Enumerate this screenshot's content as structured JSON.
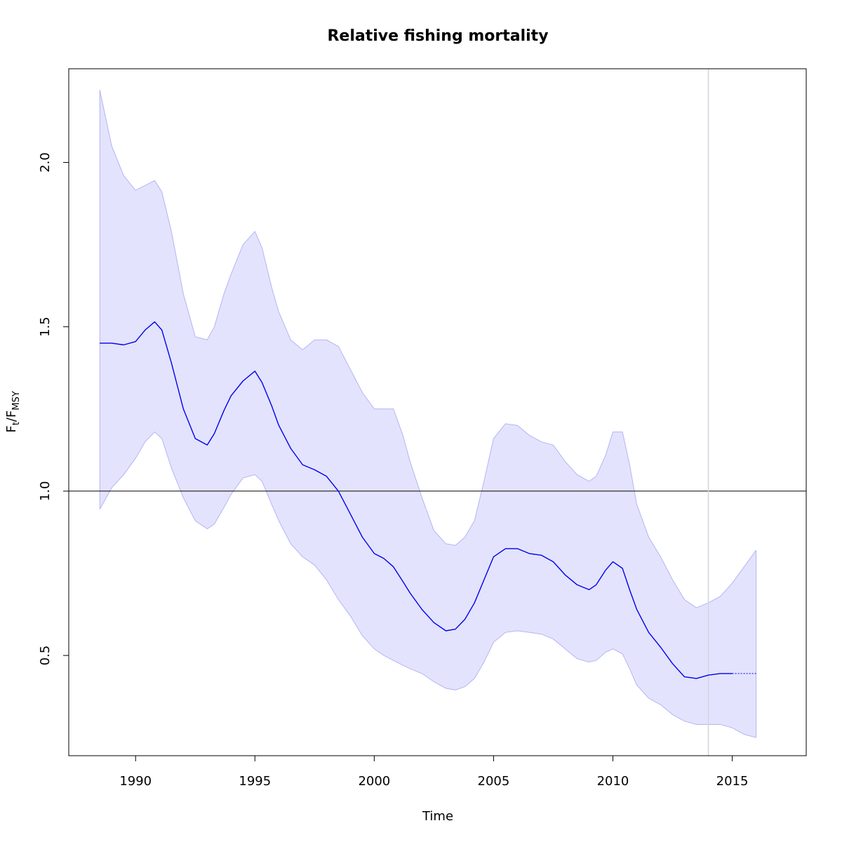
{
  "chart_data": {
    "type": "line",
    "title": "Relative fishing mortality",
    "xlabel": "Time",
    "ylabel": {
      "main": "F",
      "sub1": "t",
      "sep": "/",
      "main2": "F",
      "sub2": "MSY"
    },
    "xlim": [
      1987.2,
      2018.1
    ],
    "ylim": [
      0.195,
      2.285
    ],
    "x_ticks": [
      1990,
      1995,
      2000,
      2005,
      2010,
      2015
    ],
    "y_ticks": [
      0.5,
      1.0,
      1.5,
      2.0
    ],
    "y_tick_labels": [
      "0.5",
      "1.0",
      "1.5",
      "2.0"
    ],
    "reference_hline": 1.0,
    "reference_vline": 2014,
    "grid": false,
    "colors": {
      "line": "#0000ee",
      "band_fill": "#e3e3fd",
      "band_edge": "#b4b4f6",
      "hline": "#000000",
      "vline": "#d4d4e0"
    },
    "series": [
      {
        "style": "estimate",
        "x": [
          1988.5,
          1989.0,
          1989.5,
          1990.0,
          1990.4,
          1990.8,
          1991.1,
          1991.5,
          1992.0,
          1992.5,
          1993.0,
          1993.3,
          1993.7,
          1994.0,
          1994.5,
          1995.0,
          1995.3,
          1995.7,
          1996.0,
          1996.5,
          1997.0,
          1997.5,
          1998.0,
          1998.5,
          1999.0,
          1999.5,
          2000.0,
          2000.4,
          2000.8,
          2001.2,
          2001.5,
          2002.0,
          2002.5,
          2003.0,
          2003.4,
          2003.8,
          2004.2,
          2004.6,
          2005.0,
          2005.5,
          2006.0,
          2006.5,
          2007.0,
          2007.5,
          2008.0,
          2008.5,
          2009.0,
          2009.3,
          2009.7,
          2010.0,
          2010.4,
          2010.7,
          2011.0,
          2011.5,
          2012.0,
          2012.5,
          2013.0,
          2013.5,
          2014.0,
          2014.5,
          2015.0
        ],
        "y": [
          1.45,
          1.45,
          1.445,
          1.455,
          1.49,
          1.515,
          1.49,
          1.39,
          1.25,
          1.16,
          1.14,
          1.175,
          1.245,
          1.29,
          1.335,
          1.365,
          1.33,
          1.26,
          1.2,
          1.13,
          1.08,
          1.065,
          1.045,
          1.0,
          0.93,
          0.86,
          0.81,
          0.795,
          0.77,
          0.725,
          0.69,
          0.64,
          0.6,
          0.575,
          0.58,
          0.61,
          0.66,
          0.73,
          0.8,
          0.825,
          0.825,
          0.81,
          0.805,
          0.785,
          0.745,
          0.715,
          0.7,
          0.715,
          0.76,
          0.785,
          0.765,
          0.7,
          0.64,
          0.57,
          0.525,
          0.475,
          0.435,
          0.43,
          0.44,
          0.445,
          0.445
        ]
      },
      {
        "style": "projection",
        "x": [
          2015.0,
          2016.0
        ],
        "y": [
          0.445,
          0.445
        ]
      }
    ],
    "confidence_band": {
      "x": [
        1988.5,
        1989.0,
        1989.5,
        1990.0,
        1990.4,
        1990.8,
        1991.1,
        1991.5,
        1992.0,
        1992.5,
        1993.0,
        1993.3,
        1993.7,
        1994.0,
        1994.5,
        1995.0,
        1995.3,
        1995.7,
        1996.0,
        1996.5,
        1997.0,
        1997.5,
        1998.0,
        1998.5,
        1999.0,
        1999.5,
        2000.0,
        2000.4,
        2000.8,
        2001.2,
        2001.5,
        2002.0,
        2002.5,
        2003.0,
        2003.4,
        2003.8,
        2004.2,
        2004.6,
        2005.0,
        2005.5,
        2006.0,
        2006.5,
        2007.0,
        2007.5,
        2008.0,
        2008.5,
        2009.0,
        2009.3,
        2009.7,
        2010.0,
        2010.4,
        2010.7,
        2011.0,
        2011.5,
        2012.0,
        2012.5,
        2013.0,
        2013.5,
        2014.0,
        2014.5,
        2015.0,
        2015.5,
        2016.0
      ],
      "upper": [
        2.22,
        2.05,
        1.96,
        1.915,
        1.93,
        1.945,
        1.91,
        1.79,
        1.6,
        1.47,
        1.46,
        1.5,
        1.6,
        1.66,
        1.75,
        1.79,
        1.74,
        1.62,
        1.545,
        1.46,
        1.43,
        1.46,
        1.46,
        1.44,
        1.37,
        1.3,
        1.25,
        1.25,
        1.25,
        1.17,
        1.09,
        0.98,
        0.88,
        0.84,
        0.835,
        0.86,
        0.91,
        1.03,
        1.16,
        1.205,
        1.2,
        1.17,
        1.15,
        1.14,
        1.09,
        1.05,
        1.03,
        1.045,
        1.11,
        1.18,
        1.18,
        1.08,
        0.96,
        0.86,
        0.8,
        0.73,
        0.67,
        0.645,
        0.66,
        0.68,
        0.72,
        0.77,
        0.82
      ],
      "lower": [
        0.945,
        1.01,
        1.05,
        1.1,
        1.15,
        1.18,
        1.16,
        1.07,
        0.98,
        0.91,
        0.885,
        0.9,
        0.95,
        0.99,
        1.04,
        1.05,
        1.03,
        0.96,
        0.91,
        0.84,
        0.8,
        0.775,
        0.73,
        0.67,
        0.62,
        0.56,
        0.52,
        0.5,
        0.485,
        0.47,
        0.46,
        0.445,
        0.42,
        0.4,
        0.395,
        0.405,
        0.43,
        0.48,
        0.54,
        0.57,
        0.575,
        0.57,
        0.565,
        0.55,
        0.52,
        0.49,
        0.48,
        0.485,
        0.51,
        0.52,
        0.505,
        0.46,
        0.41,
        0.37,
        0.35,
        0.32,
        0.3,
        0.29,
        0.29,
        0.29,
        0.28,
        0.26,
        0.25
      ]
    }
  }
}
